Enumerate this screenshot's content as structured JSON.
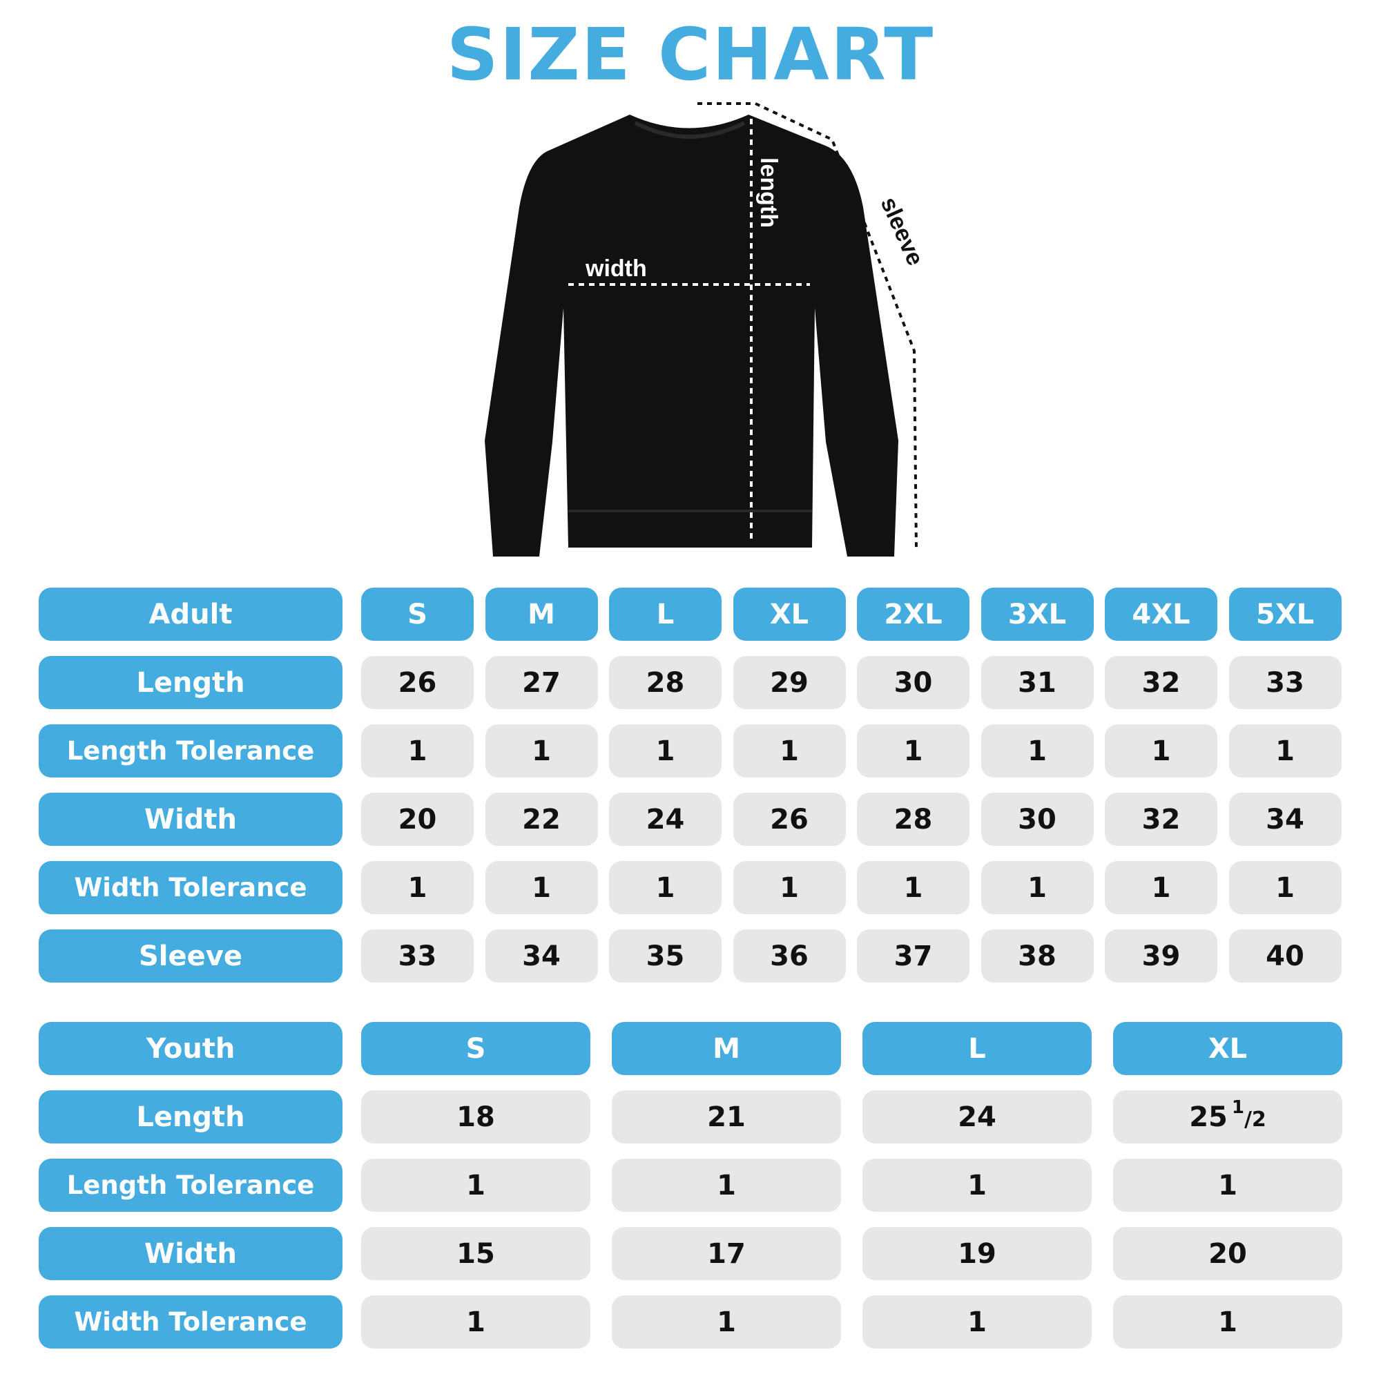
{
  "title": "SIZE CHART",
  "colors": {
    "accent": "#45ace0",
    "cell": "#e6e7e9",
    "garment": "#111111"
  },
  "diagram": {
    "width_label": "width",
    "length_label": "length",
    "sleeve_label": "sleeve"
  },
  "adult": {
    "header": "Adult",
    "sizes": [
      "S",
      "M",
      "L",
      "XL",
      "2XL",
      "3XL",
      "4XL",
      "5XL"
    ],
    "rows": [
      {
        "label": "Length",
        "values": [
          "26",
          "27",
          "28",
          "29",
          "30",
          "31",
          "32",
          "33"
        ]
      },
      {
        "label": "Length Tolerance",
        "values": [
          "1",
          "1",
          "1",
          "1",
          "1",
          "1",
          "1",
          "1"
        ]
      },
      {
        "label": "Width",
        "values": [
          "20",
          "22",
          "24",
          "26",
          "28",
          "30",
          "32",
          "34"
        ]
      },
      {
        "label": "Width Tolerance",
        "values": [
          "1",
          "1",
          "1",
          "1",
          "1",
          "1",
          "1",
          "1"
        ]
      },
      {
        "label": "Sleeve",
        "values": [
          "33",
          "34",
          "35",
          "36",
          "37",
          "38",
          "39",
          "40"
        ]
      }
    ]
  },
  "youth": {
    "header": "Youth",
    "sizes": [
      "S",
      "M",
      "L",
      "XL"
    ],
    "rows": [
      {
        "label": "Length",
        "values": [
          "18",
          "21",
          "24",
          {
            "whole": "25",
            "num": "1",
            "den": "2"
          }
        ]
      },
      {
        "label": "Length Tolerance",
        "values": [
          "1",
          "1",
          "1",
          "1"
        ]
      },
      {
        "label": "Width",
        "values": [
          "15",
          "17",
          "19",
          "20"
        ]
      },
      {
        "label": "Width Tolerance",
        "values": [
          "1",
          "1",
          "1",
          "1"
        ]
      }
    ]
  }
}
